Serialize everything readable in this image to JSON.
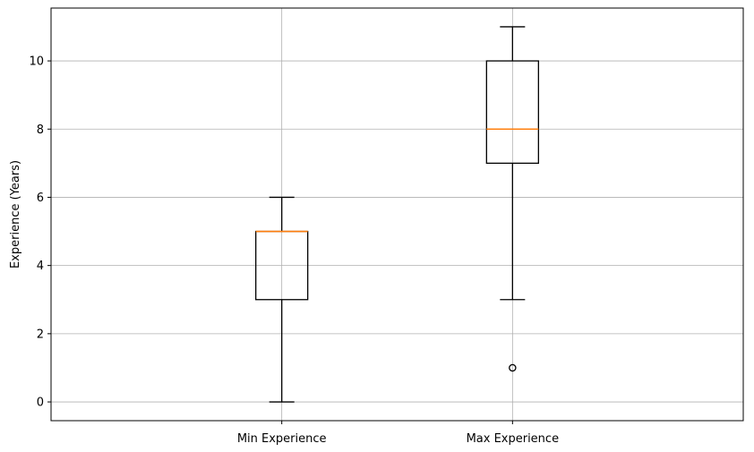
{
  "chart_data": {
    "type": "boxplot",
    "title": "",
    "xlabel": "",
    "ylabel": "Experience (Years)",
    "ylim": [
      -0.55,
      11.55
    ],
    "yticks": [
      0,
      2,
      4,
      6,
      8,
      10
    ],
    "grid": true,
    "categories": [
      "Min Experience",
      "Max Experience"
    ],
    "boxes": [
      {
        "category": "Min Experience",
        "whisker_low": 0,
        "q1": 3,
        "median": 5,
        "q3": 5,
        "whisker_high": 6,
        "outliers": []
      },
      {
        "category": "Max Experience",
        "whisker_low": 3,
        "q1": 7,
        "median": 8,
        "q3": 10,
        "whisker_high": 11,
        "outliers": [
          1
        ]
      }
    ],
    "colors": {
      "box": "#000000",
      "median": "#ff7f0e",
      "grid": "#b0b0b0",
      "outlier": "#000000"
    }
  }
}
